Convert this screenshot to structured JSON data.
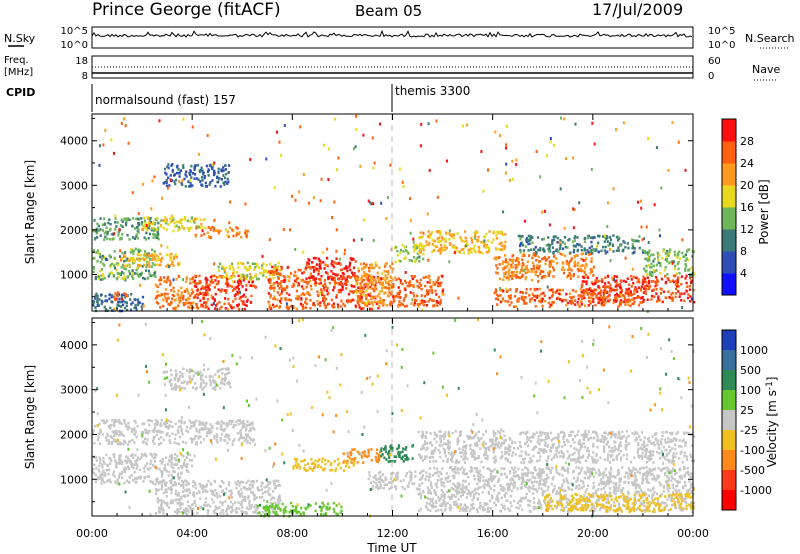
{
  "header": {
    "station": "Prince George (fitACF)",
    "beam": "Beam 05",
    "date": "17/Jul/2009"
  },
  "panels": {
    "nsky": {
      "label": "N.Sky",
      "ticks_left": [
        "10^5",
        "10^0"
      ],
      "ticks_right": [
        "10^5",
        "10^0"
      ],
      "right_label": "N.Search"
    },
    "freq": {
      "label_line1": "Freq.",
      "label_line2": "[MHz]",
      "ticks_left": [
        "18",
        "8"
      ],
      "ticks_right": [
        "60",
        "0"
      ],
      "right_label": "Nave"
    },
    "cpid": {
      "label": "CPID",
      "modes": [
        {
          "name": "normalsound (fast) 157",
          "start_hour": 0
        },
        {
          "name": "themis 3300",
          "start_hour": 12
        }
      ]
    }
  },
  "chart_data": [
    {
      "type": "heatmap",
      "name": "power",
      "xlabel": "",
      "ylabel": "Slant Range [km]",
      "xlim": [
        0,
        24
      ],
      "ylim": [
        180,
        4600
      ],
      "yticks": [
        1000,
        2000,
        3000,
        4000
      ],
      "colorbar": {
        "label": "Power [dB]",
        "tick_labels": [
          "4",
          "8",
          "12",
          "16",
          "20",
          "24",
          "28"
        ],
        "colors": [
          "#1010ff",
          "#2d4fb5",
          "#3c7a78",
          "#6db65a",
          "#e8d81e",
          "#ff9a1e",
          "#ff6010",
          "#ff1010"
        ],
        "range": [
          0,
          32
        ]
      },
      "regions": [
        {
          "x": [
            0.0,
            2.7
          ],
          "y": [
            1800,
            2300
          ],
          "value": 12
        },
        {
          "x": [
            2.0,
            4.5
          ],
          "y": [
            2000,
            2350
          ],
          "value": 18
        },
        {
          "x": [
            4.0,
            6.2
          ],
          "y": [
            1850,
            2100
          ],
          "value": 24
        },
        {
          "x": [
            0.0,
            2.5
          ],
          "y": [
            900,
            1600
          ],
          "value": 14
        },
        {
          "x": [
            1.2,
            3.5
          ],
          "y": [
            1200,
            1500
          ],
          "value": 20
        },
        {
          "x": [
            0.0,
            2.0
          ],
          "y": [
            200,
            600
          ],
          "value": 9
        },
        {
          "x": [
            0.8,
            1.4
          ],
          "y": [
            450,
            650
          ],
          "value": 26
        },
        {
          "x": [
            2.5,
            4.0
          ],
          "y": [
            250,
            1000
          ],
          "value": 25
        },
        {
          "x": [
            4.0,
            6.5
          ],
          "y": [
            250,
            1000
          ],
          "value": 28
        },
        {
          "x": [
            5.0,
            7.5
          ],
          "y": [
            900,
            1300
          ],
          "value": 18
        },
        {
          "x": [
            7.0,
            9.0
          ],
          "y": [
            250,
            1200
          ],
          "value": 26
        },
        {
          "x": [
            8.5,
            10.5
          ],
          "y": [
            900,
            1400
          ],
          "value": 30
        },
        {
          "x": [
            9.0,
            11.5
          ],
          "y": [
            250,
            1000
          ],
          "value": 27
        },
        {
          "x": [
            10.5,
            12.0
          ],
          "y": [
            300,
            1300
          ],
          "value": 22
        },
        {
          "x": [
            11.8,
            14.0
          ],
          "y": [
            300,
            1000
          ],
          "value": 26
        },
        {
          "x": [
            12.0,
            13.2
          ],
          "y": [
            1300,
            1700
          ],
          "value": 16
        },
        {
          "x": [
            13.0,
            16.5
          ],
          "y": [
            1500,
            2000
          ],
          "value": 20
        },
        {
          "x": [
            16.0,
            20.0
          ],
          "y": [
            900,
            1500
          ],
          "value": 24
        },
        {
          "x": [
            19.5,
            24.0
          ],
          "y": [
            400,
            1000
          ],
          "value": 28
        },
        {
          "x": [
            16.0,
            22.0
          ],
          "y": [
            300,
            700
          ],
          "value": 26
        },
        {
          "x": [
            2.8,
            5.5
          ],
          "y": [
            3000,
            3500
          ],
          "value": 7
        },
        {
          "x": [
            17.0,
            22.0
          ],
          "y": [
            1500,
            1900
          ],
          "value": 10
        },
        {
          "x": [
            22.0,
            24.0
          ],
          "y": [
            1000,
            1600
          ],
          "value": 14
        }
      ]
    },
    {
      "type": "heatmap",
      "name": "velocity",
      "xlabel": "Time UT",
      "ylabel": "Slant Range [km]",
      "xlim": [
        0,
        24
      ],
      "ylim": [
        180,
        4600
      ],
      "yticks": [
        1000,
        2000,
        3000,
        4000
      ],
      "xtick_labels": [
        "00:00",
        "04:00",
        "08:00",
        "12:00",
        "16:00",
        "20:00",
        "00:00"
      ],
      "colorbar": {
        "label": "Velocity [m s^-1]",
        "tick_labels": [
          "1000",
          "500",
          "100",
          "25",
          "-25",
          "-100",
          "-500",
          "-1000"
        ],
        "colors": [
          "#1d3fb8",
          "#3a6e9c",
          "#2f8a56",
          "#66c82e",
          "#c6c6c6",
          "#f0c020",
          "#ff8a1a",
          "#ff3a1a",
          "#ff0000"
        ]
      },
      "regions": [
        {
          "x": [
            0.0,
            6.5
          ],
          "y": [
            1800,
            2350
          ],
          "value": 0
        },
        {
          "x": [
            0.0,
            4.0
          ],
          "y": [
            900,
            1600
          ],
          "value": 0
        },
        {
          "x": [
            2.5,
            7.5
          ],
          "y": [
            250,
            1000
          ],
          "value": 0
        },
        {
          "x": [
            2.8,
            5.5
          ],
          "y": [
            3000,
            3500
          ],
          "value": 5
        },
        {
          "x": [
            6.5,
            10.0
          ],
          "y": [
            200,
            500
          ],
          "value": 80
        },
        {
          "x": [
            8.0,
            10.5
          ],
          "y": [
            1200,
            1500
          ],
          "value": -80
        },
        {
          "x": [
            10.0,
            11.5
          ],
          "y": [
            1400,
            1700
          ],
          "value": -200
        },
        {
          "x": [
            11.5,
            12.8
          ],
          "y": [
            1400,
            1800
          ],
          "value": 300
        },
        {
          "x": [
            11.0,
            13.0
          ],
          "y": [
            800,
            1200
          ],
          "value": 0
        },
        {
          "x": [
            13.0,
            24.0
          ],
          "y": [
            1400,
            2100
          ],
          "value": 0
        },
        {
          "x": [
            13.0,
            24.0
          ],
          "y": [
            300,
            1300
          ],
          "value": 0
        },
        {
          "x": [
            18.0,
            24.0
          ],
          "y": [
            300,
            700
          ],
          "value": -60
        }
      ]
    }
  ]
}
